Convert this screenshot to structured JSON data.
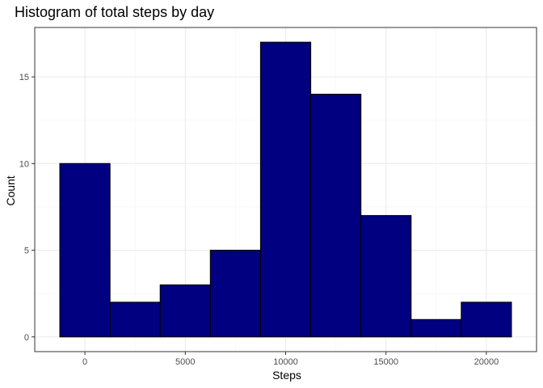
{
  "chart_data": {
    "type": "bar",
    "title": "Histogram of total steps by day",
    "xlabel": "Steps",
    "ylabel": "Count",
    "bin_width": 2500,
    "bins": [
      {
        "start": -1250,
        "end": 1250,
        "count": 10
      },
      {
        "start": 1250,
        "end": 3750,
        "count": 2
      },
      {
        "start": 3750,
        "end": 6250,
        "count": 3
      },
      {
        "start": 6250,
        "end": 8750,
        "count": 5
      },
      {
        "start": 8750,
        "end": 11250,
        "count": 17
      },
      {
        "start": 11250,
        "end": 13750,
        "count": 14
      },
      {
        "start": 13750,
        "end": 16250,
        "count": 7
      },
      {
        "start": 16250,
        "end": 18750,
        "count": 1
      },
      {
        "start": 18750,
        "end": 21250,
        "count": 2
      }
    ],
    "xlim": [
      -2500,
      22500
    ],
    "ylim": [
      -0.85,
      17.85
    ],
    "x_ticks": [
      0,
      5000,
      10000,
      15000,
      20000
    ],
    "x_tick_labels": [
      "0",
      "5000",
      "10000",
      "15000",
      "20000"
    ],
    "y_ticks": [
      0,
      5,
      10,
      15
    ],
    "y_tick_labels": [
      "0",
      "5",
      "10",
      "15"
    ],
    "grid": true,
    "bar_fill": "#000080",
    "bar_stroke": "#000000",
    "panel_border": "#333333",
    "grid_major": "#ebebeb",
    "grid_minor": "#f5f5f5"
  }
}
